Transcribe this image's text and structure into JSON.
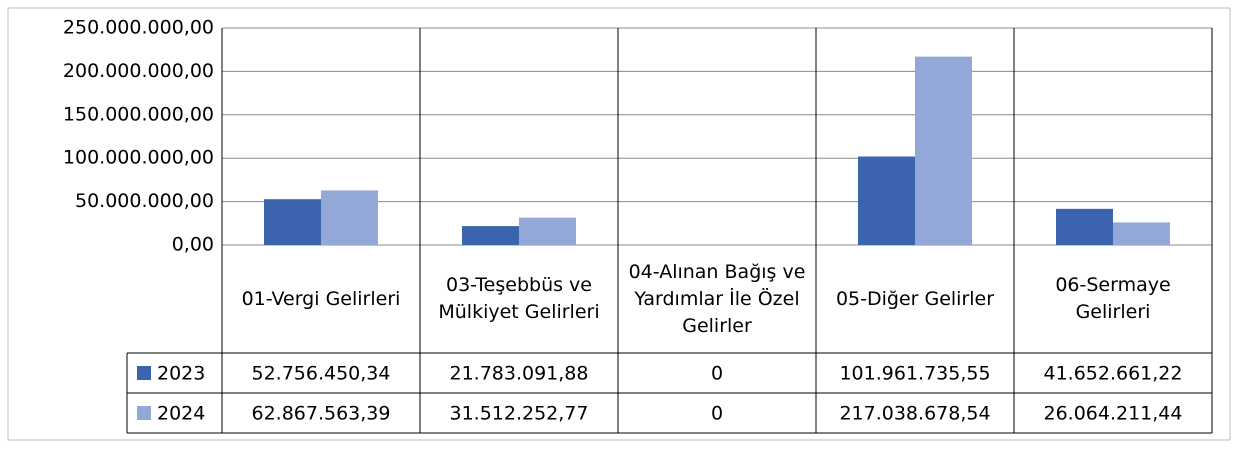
{
  "chart_data": {
    "type": "bar",
    "categories": [
      "01-Vergi Gelirleri",
      "03-Teşebbüs ve Mülkiyet Gelirleri",
      "04-Alınan Bağış ve Yardımlar İle Özel Gelirler",
      "05-Diğer Gelirler",
      "06-Sermaye Gelirleri"
    ],
    "series": [
      {
        "name": "2023",
        "color": "#3c64ae",
        "values": [
          52756450.34,
          21783091.88,
          0,
          101961735.55,
          41652661.22
        ],
        "value_labels": [
          "52.756.450,34",
          "21.783.091,88",
          "0",
          "101.961.735,55",
          "41.652.661,22"
        ]
      },
      {
        "name": "2024",
        "color": "#94a8d8",
        "values": [
          62867563.39,
          31512252.77,
          0,
          217038678.54,
          26064211.44
        ],
        "value_labels": [
          "62.867.563,39",
          "31.512.252,77",
          "0",
          "217.038.678,54",
          "26.064.211,44"
        ]
      }
    ],
    "ylim": [
      0,
      250000000
    ],
    "yticks": [
      {
        "value": 0,
        "label": "0,00"
      },
      {
        "value": 50000000,
        "label": "50.000.000,00"
      },
      {
        "value": 100000000,
        "label": "100.000.000,00"
      },
      {
        "value": 150000000,
        "label": "150.000.000,00"
      },
      {
        "value": 200000000,
        "label": "200.000.000,00"
      },
      {
        "value": 250000000,
        "label": "250.000.000,00"
      }
    ],
    "grid": true
  }
}
